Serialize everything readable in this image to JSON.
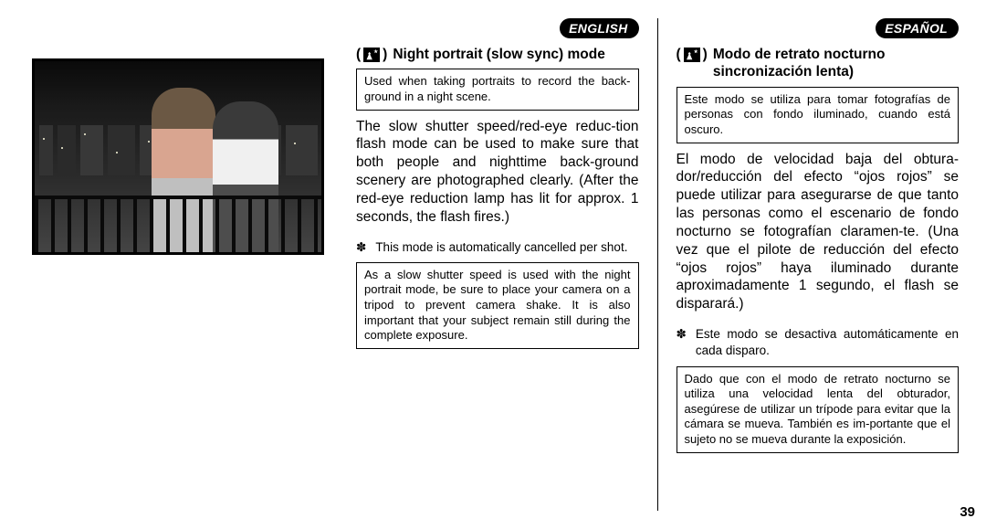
{
  "page_number": "39",
  "english": {
    "lang_label": "ENGLISH",
    "heading_pre": "(",
    "heading_post": ")",
    "heading_text": "Night portrait (slow sync) mode",
    "intro_box": "Used when taking portraits to record the back-ground in a night scene.",
    "body": "The slow shutter speed/red-eye reduc-tion flash mode can be used to make sure that both people and nighttime back-ground scenery are photographed clearly. (After the red-eye reduction lamp has lit for approx. 1 seconds, the flash fires.)",
    "note_marker": "✽",
    "note": "This mode is automatically cancelled per shot.",
    "tip_box": "As a slow shutter speed is used with the night portrait mode, be sure to place your camera on a tripod to prevent camera shake. It is also important that your subject remain still during the complete exposure."
  },
  "spanish": {
    "lang_label": "ESPAÑOL",
    "heading_pre": "(",
    "heading_post": ")",
    "heading_text": "Modo de retrato nocturno sincronización lenta)",
    "intro_box": "Este modo se utiliza para tomar fotografías de personas con fondo iluminado, cuando está oscuro.",
    "body": "El modo de velocidad baja del obtura-dor/reducción del efecto “ojos rojos” se puede utilizar para asegurarse de que tanto las personas como el escenario de fondo nocturno se fotografían claramen-te. (Una vez que el pilote de reducción del efecto “ojos rojos” haya iluminado durante aproximadamente 1 segundo, el flash se disparará.)",
    "note_marker": "✽",
    "note": "Este modo se desactiva automáticamente en cada disparo.",
    "tip_box": "Dado que con el modo de retrato nocturno se utiliza una velocidad lenta del obturador, asegúrese de utilizar un trípode para evitar que la cámara se mueva. También es im-portante que el sujeto no se mueva durante la exposición."
  }
}
